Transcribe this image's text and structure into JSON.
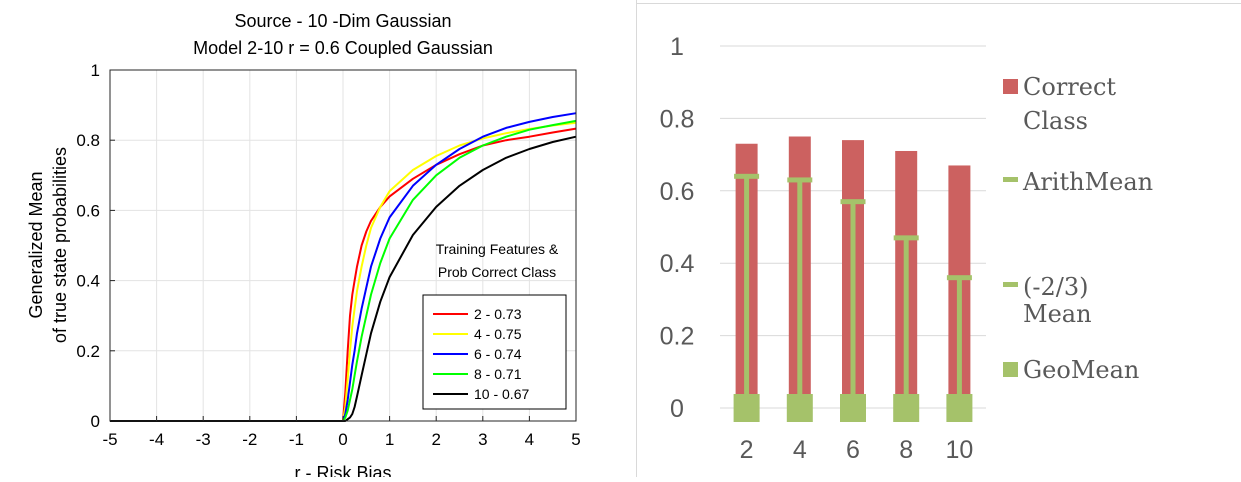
{
  "chart_data": [
    {
      "type": "line",
      "title": "Source - 10 -Dim Gaussian",
      "subtitle": "Model 2-10 r = 0.6 Coupled Gaussian",
      "xlabel": "r - Risk Bias",
      "ylabel_line1": "Generalized Mean",
      "ylabel_line2": "of true state probabilities",
      "xlim": [
        -5,
        5
      ],
      "ylim": [
        0,
        1
      ],
      "x_ticks": [
        -5,
        -4,
        -3,
        -2,
        -1,
        0,
        1,
        2,
        3,
        4,
        5
      ],
      "y_ticks": [
        0,
        0.2,
        0.4,
        0.6,
        0.8,
        1
      ],
      "grid": true,
      "legend_title_line1": "Training Features &",
      "legend_title_line2": "Prob Correct Class",
      "legend_placement": "bottom-right",
      "x": [
        -5,
        0,
        0.05,
        0.1,
        0.15,
        0.2,
        0.25,
        0.3,
        0.4,
        0.5,
        0.6,
        0.8,
        1.0,
        1.5,
        2.0,
        2.5,
        3.0,
        3.5,
        4.0,
        4.5,
        5.0
      ],
      "series": [
        {
          "name": "2 - 0.73",
          "color": "#ff0000",
          "values": [
            0,
            0,
            0.08,
            0.2,
            0.3,
            0.36,
            0.4,
            0.44,
            0.5,
            0.54,
            0.57,
            0.61,
            0.64,
            0.69,
            0.73,
            0.76,
            0.785,
            0.8,
            0.81,
            0.822,
            0.833
          ]
        },
        {
          "name": "4 - 0.75",
          "color": "#ffff00",
          "values": [
            0,
            0,
            0.04,
            0.12,
            0.2,
            0.27,
            0.32,
            0.37,
            0.44,
            0.5,
            0.55,
            0.61,
            0.655,
            0.715,
            0.755,
            0.785,
            0.805,
            0.82,
            0.832,
            0.842,
            0.85
          ]
        },
        {
          "name": "6 - 0.74",
          "color": "#0000ff",
          "values": [
            0,
            0,
            0.02,
            0.06,
            0.11,
            0.16,
            0.2,
            0.25,
            0.32,
            0.38,
            0.44,
            0.52,
            0.58,
            0.67,
            0.73,
            0.775,
            0.81,
            0.835,
            0.852,
            0.866,
            0.877
          ]
        },
        {
          "name": "8 - 0.71",
          "color": "#00ff00",
          "values": [
            0,
            0,
            0.01,
            0.03,
            0.06,
            0.09,
            0.13,
            0.17,
            0.24,
            0.3,
            0.36,
            0.45,
            0.52,
            0.63,
            0.7,
            0.75,
            0.785,
            0.81,
            0.83,
            0.843,
            0.855
          ]
        },
        {
          "name": "10 - 0.67",
          "color": "#000000",
          "values": [
            0,
            0,
            0.0,
            0.005,
            0.01,
            0.02,
            0.04,
            0.07,
            0.13,
            0.19,
            0.25,
            0.34,
            0.41,
            0.53,
            0.61,
            0.67,
            0.715,
            0.75,
            0.775,
            0.795,
            0.81
          ]
        }
      ]
    },
    {
      "type": "bar",
      "categories": [
        "2",
        "4",
        "6",
        "8",
        "10"
      ],
      "ylim": [
        0,
        1
      ],
      "y_ticks": [
        "0",
        "0.2",
        "0.4",
        "0.6",
        "0.8",
        "1"
      ],
      "grid": true,
      "legend_placement": "right",
      "series": [
        {
          "name": "Correct Class",
          "color": "#cc6160",
          "values": [
            0.73,
            0.75,
            0.74,
            0.71,
            0.67
          ]
        },
        {
          "name": "ArithMean",
          "color": "#a5c26a",
          "values": [
            0.64,
            0.63,
            0.57,
            0.47,
            0.36
          ]
        },
        {
          "name": "(-2/3) Mean",
          "color": "#a5c26a",
          "values": [
            0.01,
            0.01,
            0.01,
            0.01,
            0.01
          ]
        },
        {
          "name": "GeoMean",
          "color": "#a5c26a",
          "values": [
            0,
            0,
            0,
            0,
            0
          ]
        }
      ],
      "legend": {
        "correct_line1": "Correct",
        "correct_line2": "Class",
        "arith": "ArithMean",
        "minus_line1": "(-2/3)",
        "minus_line2": "Mean",
        "geo": "GeoMean"
      }
    }
  ]
}
